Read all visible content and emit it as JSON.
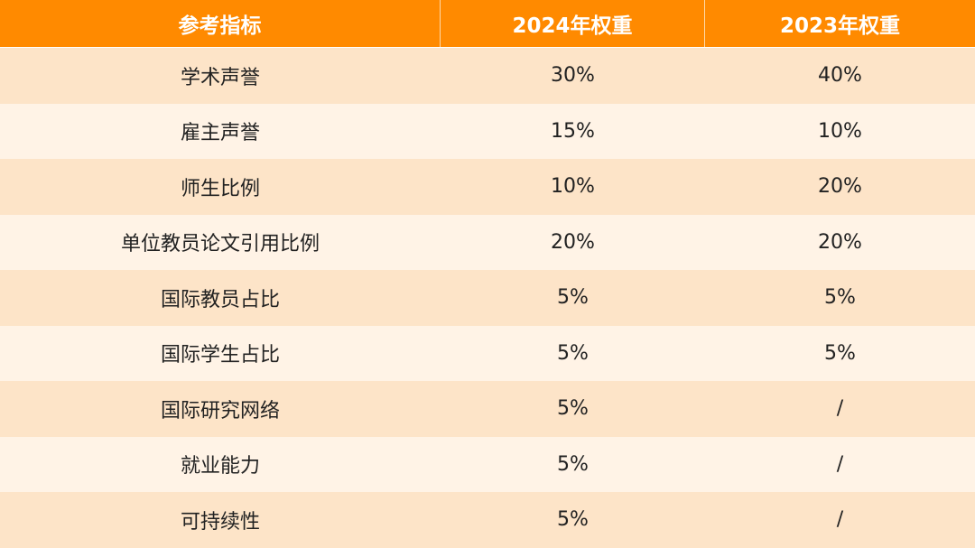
{
  "table": {
    "headers": [
      "参考指标",
      "2024年权重",
      "2023年权重"
    ],
    "rows": [
      [
        "学术声誉",
        "30%",
        "40%"
      ],
      [
        "雇主声誉",
        "15%",
        "10%"
      ],
      [
        "师生比例",
        "10%",
        "20%"
      ],
      [
        "单位教员论文引用比例",
        "20%",
        "20%"
      ],
      [
        "国际教员占比",
        "5%",
        "5%"
      ],
      [
        "国际学生占比",
        "5%",
        "5%"
      ],
      [
        "国际研究网络",
        "5%",
        "/"
      ],
      [
        "就业能力",
        "5%",
        "/"
      ],
      [
        "可持续性",
        "5%",
        "/"
      ]
    ]
  },
  "colors": {
    "header_bg": "#ff8a00",
    "row_shaded": "#fde4c8",
    "row_light": "#fff3e6"
  }
}
